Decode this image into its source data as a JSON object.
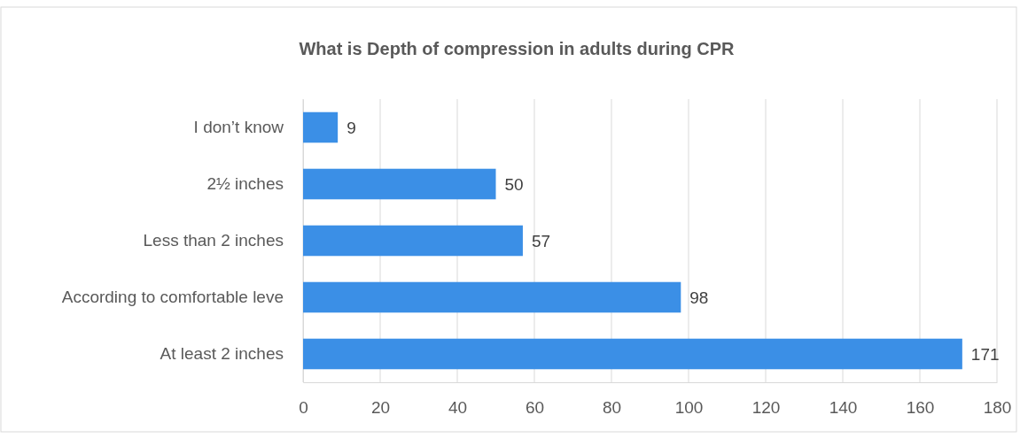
{
  "chart_data": {
    "type": "bar",
    "orientation": "horizontal",
    "title": "What is Depth of compression in adults during CPR",
    "categories": [
      "I don’t know",
      "2½ inches",
      "Less than 2 inches",
      "According to comfortable leve",
      "At least 2 inches"
    ],
    "values": [
      9,
      50,
      57,
      98,
      171
    ],
    "color": "#3b8fe6",
    "xlim": [
      0,
      180
    ],
    "xticks": [
      0,
      20,
      40,
      60,
      80,
      100,
      120,
      140,
      160,
      180
    ],
    "grid": "x",
    "data_labels": true
  }
}
